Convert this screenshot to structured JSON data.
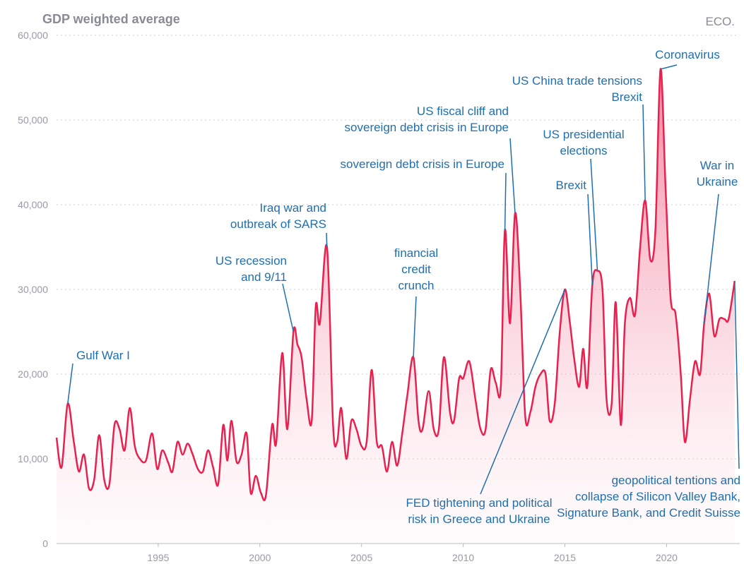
{
  "title": "GDP weighted average",
  "brand": "ECO.",
  "colors": {
    "line": "#e8214f",
    "fill_top": "#e8214f",
    "fill_bottom": "#fde3ea",
    "annotation": "#1f6fae",
    "axis_text": "#9a9aa6"
  },
  "chart_data": {
    "type": "area",
    "title": "GDP weighted average",
    "xlabel": "",
    "ylabel": "",
    "xlim": [
      1990.0,
      2023.6
    ],
    "ylim": [
      0,
      60000
    ],
    "grid": true,
    "x_ticks": [
      1995,
      2000,
      2005,
      2010,
      2015,
      2020
    ],
    "y_ticks": [
      0,
      10000,
      20000,
      30000,
      40000,
      50000,
      60000
    ],
    "y_tick_labels": [
      "0",
      "10,000",
      "20,000",
      "30,000",
      "40,000",
      "50,000",
      "60,000"
    ],
    "x_tick_labels": [
      "1995",
      "2000",
      "2005",
      "2010",
      "2015",
      "2020"
    ],
    "series": [
      {
        "values": [
          [
            1990.0,
            12500
          ],
          [
            1990.25,
            9000
          ],
          [
            1990.55,
            16500
          ],
          [
            1990.85,
            12000
          ],
          [
            1991.1,
            8500
          ],
          [
            1991.35,
            10500
          ],
          [
            1991.6,
            6500
          ],
          [
            1991.85,
            7500
          ],
          [
            1992.1,
            12800
          ],
          [
            1992.35,
            7500
          ],
          [
            1992.6,
            7000
          ],
          [
            1992.85,
            14000
          ],
          [
            1993.1,
            13500
          ],
          [
            1993.35,
            11000
          ],
          [
            1993.6,
            16000
          ],
          [
            1993.85,
            11500
          ],
          [
            1994.1,
            10000
          ],
          [
            1994.4,
            9800
          ],
          [
            1994.7,
            13000
          ],
          [
            1994.95,
            8800
          ],
          [
            1995.2,
            11000
          ],
          [
            1995.5,
            9500
          ],
          [
            1995.7,
            8500
          ],
          [
            1995.95,
            12000
          ],
          [
            1996.2,
            10500
          ],
          [
            1996.45,
            11800
          ],
          [
            1996.7,
            10500
          ],
          [
            1996.95,
            8800
          ],
          [
            1997.2,
            8500
          ],
          [
            1997.45,
            11000
          ],
          [
            1997.7,
            9000
          ],
          [
            1997.95,
            7000
          ],
          [
            1998.2,
            14000
          ],
          [
            1998.4,
            9800
          ],
          [
            1998.6,
            14500
          ],
          [
            1998.85,
            9700
          ],
          [
            1999.1,
            10500
          ],
          [
            1999.35,
            13000
          ],
          [
            1999.55,
            6000
          ],
          [
            1999.8,
            8000
          ],
          [
            2000.05,
            6000
          ],
          [
            2000.3,
            5700
          ],
          [
            2000.6,
            14000
          ],
          [
            2000.8,
            11800
          ],
          [
            2001.1,
            22500
          ],
          [
            2001.35,
            13500
          ],
          [
            2001.65,
            25000
          ],
          [
            2001.85,
            23500
          ],
          [
            2002.05,
            22000
          ],
          [
            2002.3,
            17000
          ],
          [
            2002.55,
            14500
          ],
          [
            2002.75,
            28000
          ],
          [
            2002.95,
            26000
          ],
          [
            2003.3,
            35000
          ],
          [
            2003.6,
            14000
          ],
          [
            2003.8,
            12000
          ],
          [
            2004.0,
            16000
          ],
          [
            2004.25,
            10000
          ],
          [
            2004.5,
            14500
          ],
          [
            2004.75,
            13500
          ],
          [
            2005.0,
            11500
          ],
          [
            2005.25,
            12000
          ],
          [
            2005.5,
            20500
          ],
          [
            2005.75,
            12000
          ],
          [
            2006.0,
            11500
          ],
          [
            2006.25,
            8500
          ],
          [
            2006.5,
            12000
          ],
          [
            2006.75,
            9200
          ],
          [
            2007.0,
            13000
          ],
          [
            2007.25,
            17500
          ],
          [
            2007.55,
            22000
          ],
          [
            2007.8,
            14500
          ],
          [
            2008.0,
            13500
          ],
          [
            2008.3,
            18000
          ],
          [
            2008.55,
            13500
          ],
          [
            2008.8,
            13500
          ],
          [
            2009.05,
            22000
          ],
          [
            2009.35,
            15500
          ],
          [
            2009.55,
            14500
          ],
          [
            2009.8,
            19500
          ],
          [
            2010.0,
            19500
          ],
          [
            2010.3,
            21500
          ],
          [
            2010.6,
            17000
          ],
          [
            2010.85,
            13500
          ],
          [
            2011.1,
            13500
          ],
          [
            2011.35,
            20500
          ],
          [
            2011.6,
            19000
          ],
          [
            2011.85,
            18500
          ],
          [
            2012.05,
            37000
          ],
          [
            2012.3,
            26000
          ],
          [
            2012.55,
            39000
          ],
          [
            2012.8,
            30000
          ],
          [
            2013.05,
            15000
          ],
          [
            2013.3,
            15500
          ],
          [
            2013.55,
            18500
          ],
          [
            2013.8,
            20000
          ],
          [
            2014.05,
            20000
          ],
          [
            2014.25,
            14500
          ],
          [
            2014.5,
            16500
          ],
          [
            2014.75,
            25000
          ],
          [
            2015.0,
            30000
          ],
          [
            2015.25,
            26000
          ],
          [
            2015.45,
            22000
          ],
          [
            2015.7,
            18500
          ],
          [
            2015.9,
            23000
          ],
          [
            2016.1,
            18500
          ],
          [
            2016.35,
            30500
          ],
          [
            2016.6,
            32200
          ],
          [
            2016.85,
            30000
          ],
          [
            2017.05,
            17000
          ],
          [
            2017.3,
            16500
          ],
          [
            2017.5,
            28500
          ],
          [
            2017.75,
            14000
          ],
          [
            2017.95,
            26000
          ],
          [
            2018.2,
            29000
          ],
          [
            2018.45,
            27000
          ],
          [
            2018.7,
            35000
          ],
          [
            2018.95,
            40500
          ],
          [
            2019.2,
            33500
          ],
          [
            2019.45,
            37000
          ],
          [
            2019.7,
            56000
          ],
          [
            2019.95,
            42000
          ],
          [
            2020.2,
            29000
          ],
          [
            2020.45,
            27000
          ],
          [
            2020.7,
            20000
          ],
          [
            2020.9,
            12000
          ],
          [
            2021.15,
            17000
          ],
          [
            2021.4,
            21500
          ],
          [
            2021.65,
            20000
          ],
          [
            2021.85,
            26000
          ],
          [
            2022.1,
            29500
          ],
          [
            2022.35,
            24500
          ],
          [
            2022.6,
            26500
          ],
          [
            2022.85,
            26500
          ],
          [
            2023.05,
            26500
          ],
          [
            2023.35,
            31000
          ]
        ]
      }
    ],
    "annotations": [
      {
        "text": [
          "Gulf War I"
        ],
        "x": 1990.55,
        "y": 16500
      },
      {
        "text": [
          "US recession",
          "and 9/11"
        ],
        "x": 2001.65,
        "y": 25000
      },
      {
        "text": [
          "Iraq war and",
          "outbreak of SARS"
        ],
        "x": 2003.3,
        "y": 35000
      },
      {
        "text": [
          "financial",
          "credit",
          "crunch"
        ],
        "x": 2007.55,
        "y": 22000
      },
      {
        "text": [
          "sovereign debt crisis in Europe"
        ],
        "x": 2012.05,
        "y": 37000
      },
      {
        "text": [
          "US fiscal cliff and",
          "sovereign debt crisis in Europe"
        ],
        "x": 2012.55,
        "y": 39000
      },
      {
        "text": [
          "US presidential",
          "elections"
        ],
        "x": 2016.6,
        "y": 32200
      },
      {
        "text": [
          "Brexit"
        ],
        "x": 2016.35,
        "y": 30500
      },
      {
        "text": [
          "US China trade tensions",
          "Brexit"
        ],
        "x": 2018.95,
        "y": 40500
      },
      {
        "text": [
          "Coronavirus"
        ],
        "x": 2019.7,
        "y": 56000
      },
      {
        "text": [
          "War in",
          "Ukraine"
        ],
        "x": 2021.85,
        "y": 26000
      },
      {
        "text": [
          "FED tightening and political",
          "risk in Greece and Ukraine"
        ],
        "x": 2015.0,
        "y": 30000
      },
      {
        "text": [
          "geopolitical tentions and",
          "collapse of Silicon Valley Bank,",
          "Signature Bank, and Credit Suisse"
        ],
        "x": 2023.35,
        "y": 31000
      }
    ]
  }
}
